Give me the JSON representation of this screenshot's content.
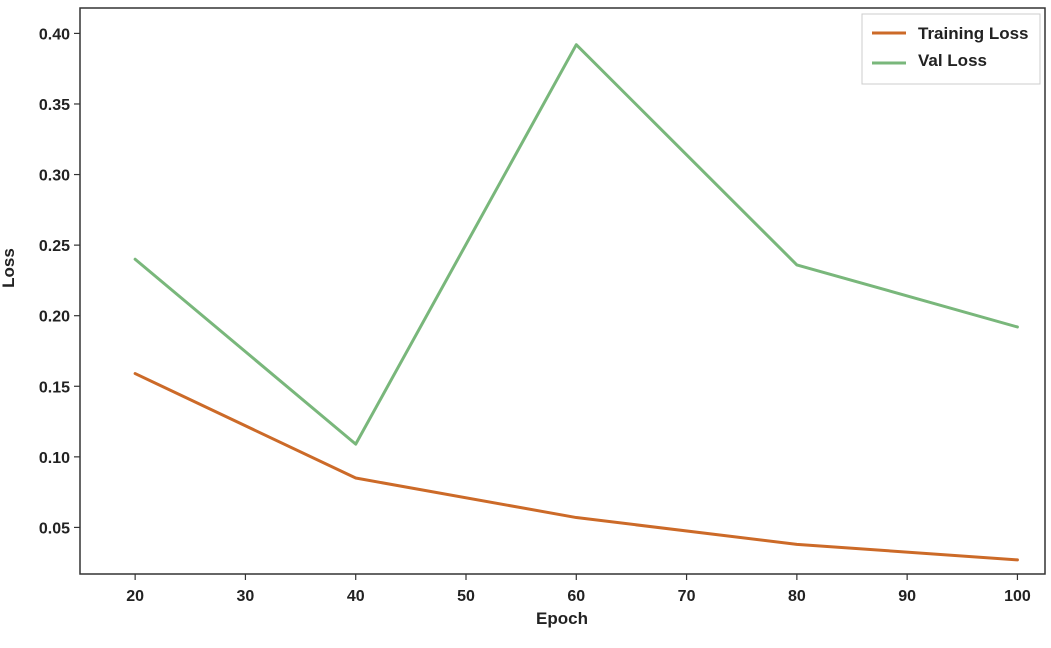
{
  "chart_data": {
    "type": "line",
    "x": [
      20,
      40,
      60,
      80,
      100
    ],
    "series": [
      {
        "name": "Training Loss",
        "color": "#cc6a28",
        "values": [
          0.159,
          0.085,
          0.057,
          0.038,
          0.027
        ]
      },
      {
        "name": "Val Loss",
        "color": "#79b77b",
        "values": [
          0.24,
          0.109,
          0.392,
          0.236,
          0.192
        ]
      }
    ],
    "xlabel": "Epoch",
    "ylabel": "Loss",
    "xticks": [
      20,
      30,
      40,
      50,
      60,
      70,
      80,
      90,
      100
    ],
    "yticks": [
      0.05,
      0.1,
      0.15,
      0.2,
      0.25,
      0.3,
      0.35,
      0.4
    ],
    "ytick_labels": [
      "0.05",
      "0.10",
      "0.15",
      "0.20",
      "0.25",
      "0.30",
      "0.35",
      "0.40"
    ],
    "xlim": [
      15,
      102.5
    ],
    "ylim": [
      0.017,
      0.418
    ],
    "grid": false,
    "legend_position": "top-right"
  }
}
